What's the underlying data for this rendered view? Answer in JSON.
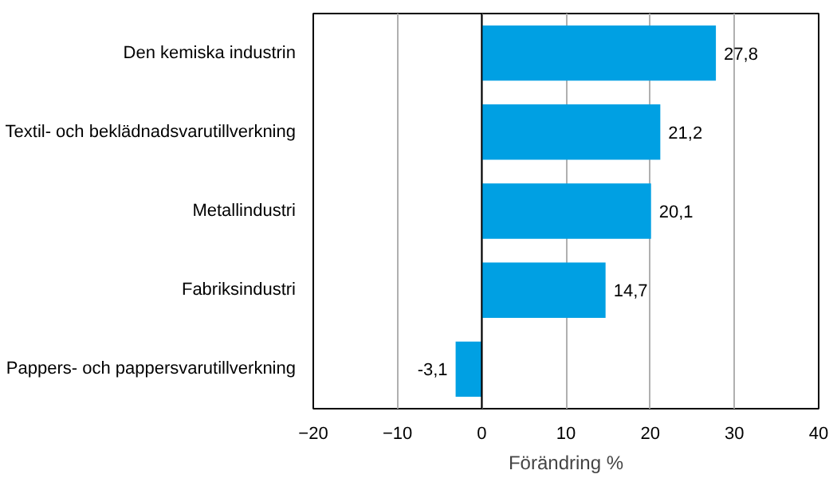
{
  "chart_data": {
    "type": "bar",
    "orientation": "horizontal",
    "xlabel": "Förändring %",
    "categories": [
      "Den kemiska industrin",
      "Textil- och beklädnadsvarutillverkning",
      "Metallindustri",
      "Fabriksindustri",
      "Pappers- och pappersvarutillverkning"
    ],
    "values": [
      27.8,
      21.2,
      20.1,
      14.7,
      -3.1
    ],
    "value_labels": [
      "27,8",
      "21,2",
      "20,1",
      "14,7",
      "-3,1"
    ],
    "color": "#00a0e3",
    "xlim": [
      -20,
      40
    ],
    "xticks": [
      -20,
      -10,
      0,
      10,
      20,
      30,
      40
    ],
    "grid": "x"
  }
}
